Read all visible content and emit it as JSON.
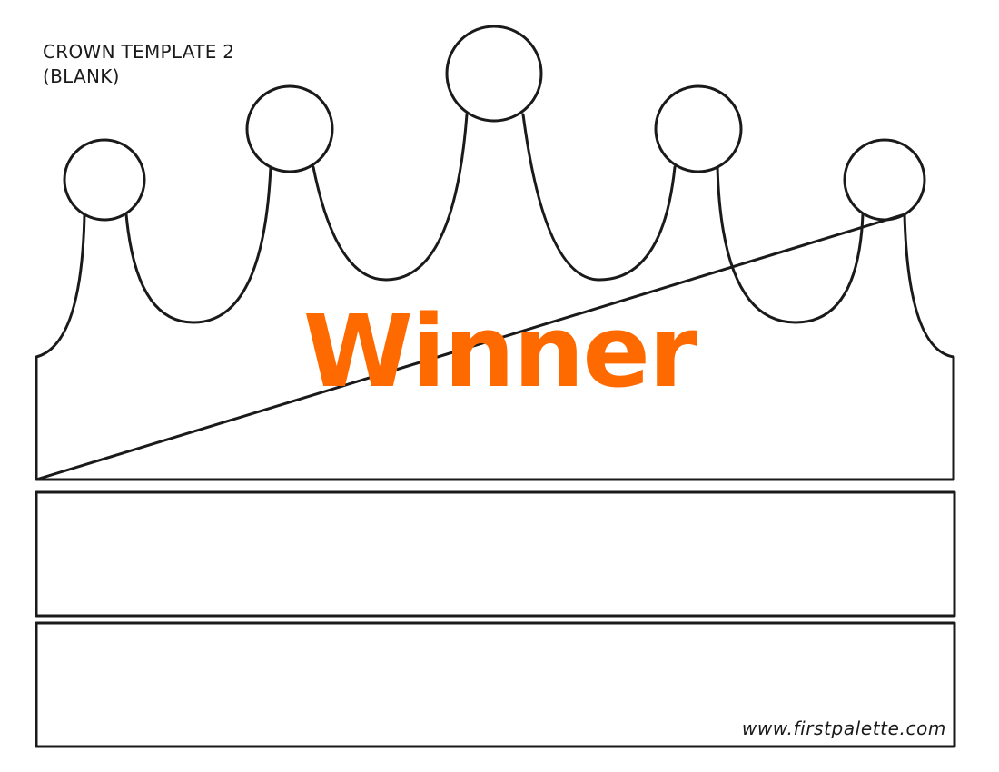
{
  "document": {
    "title_line1": "CROWN TEMPLATE 2",
    "title_line2": "(BLANK)",
    "crown_text": "Winner",
    "footer_url": "www.firstpalette.com"
  },
  "colors": {
    "crown_text": "#ff6a00",
    "outline": "#1a1a1a"
  }
}
